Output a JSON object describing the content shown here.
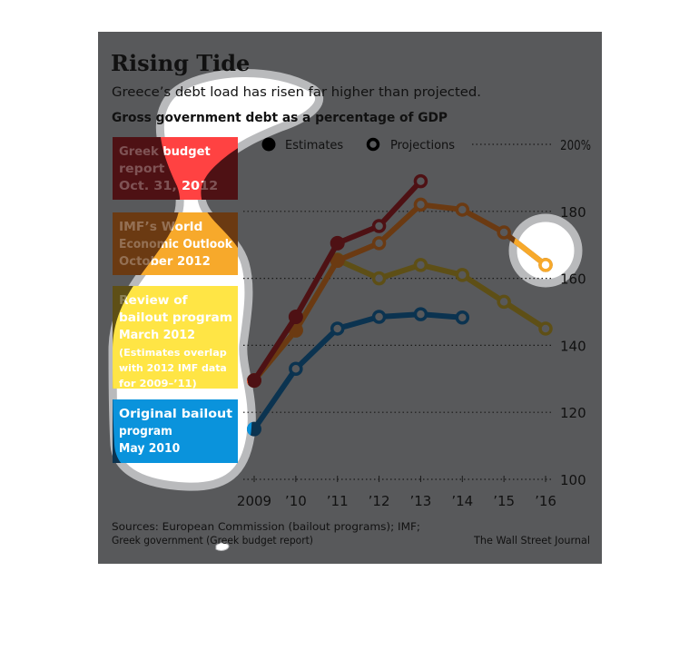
{
  "colors": {
    "background": "#58595b",
    "highlight_fill": "#ffffff",
    "highlight_ring": "#b9babc",
    "text": "#111111"
  },
  "chart_data": {
    "type": "line",
    "title": "Rising Tide",
    "subtitle": "Greece’s debt load has risen far higher than projected.",
    "chart_label": "Gross government debt as a percentage of GDP",
    "xlabel": "",
    "ylabel": "",
    "x": [
      2009,
      2010,
      2011,
      2012,
      2013,
      2014,
      2015,
      2016
    ],
    "x_tick_labels": [
      "2009",
      "’10",
      "’11",
      "’12",
      "’13",
      "’14",
      "’15",
      "’16"
    ],
    "ylim": [
      100,
      200
    ],
    "y_ticks": [
      100,
      120,
      140,
      160,
      180,
      200
    ],
    "y_tick_labels": [
      "100",
      "120",
      "140",
      "160",
      "180",
      "200%"
    ],
    "grid": true,
    "legend": {
      "placement": "top",
      "items": [
        {
          "label": "Estimates",
          "marker": "filled-circle"
        },
        {
          "label": "Projections",
          "marker": "open-circle"
        }
      ]
    },
    "series": [
      {
        "name": "Original bailout program May 2010",
        "label_lines": [
          "Original bailout",
          "program",
          "May 2010"
        ],
        "color_bright": "#0a93dc",
        "color_dim": "#0b3350",
        "x": [
          2009,
          2010,
          2011,
          2012,
          2013,
          2014
        ],
        "values": [
          115,
          133,
          145,
          148.5,
          149.3,
          148.3
        ],
        "estimate_count": 1
      },
      {
        "name": "Review of bailout program March 2012",
        "label_lines": [
          "Review of",
          "bailout program",
          "March 2012",
          "(Estimates overlap",
          "with 2012 IMF data",
          "for 2009–’11)"
        ],
        "color_bright": "#ffe545",
        "color_dim": "#5e4f16",
        "x": [
          2009,
          2010,
          2011,
          2012,
          2013,
          2014,
          2015,
          2016
        ],
        "values": [
          129.5,
          144.5,
          165.5,
          160,
          164,
          161,
          153,
          145
        ],
        "estimate_count": 3
      },
      {
        "name": "IMF’s World Economic Outlook October 2012",
        "label_lines": [
          "IMF’s World",
          "Economic Outlook",
          "October 2012"
        ],
        "color_bright": "#f7a92b",
        "color_dim": "#6b3a12",
        "x": [
          2009,
          2010,
          2011,
          2012,
          2013,
          2014,
          2015,
          2016
        ],
        "values": [
          129.5,
          144.5,
          165.3,
          170.5,
          182,
          180.5,
          173.7,
          164
        ],
        "estimate_count": 3
      },
      {
        "name": "Greek budget report Oct. 31, 2012",
        "label_lines": [
          "Greek budget",
          "report",
          "Oct. 31, 2012"
        ],
        "color_bright": "#ff4242",
        "color_dim": "#4e1114",
        "x": [
          2009,
          2010,
          2011,
          2012,
          2013
        ],
        "values": [
          129.5,
          148.5,
          170.5,
          175.6,
          189
        ],
        "estimate_count": 3
      }
    ],
    "sources": [
      "Sources: European Commission (bailout programs); IMF;",
      "Greek government (Greek budget report)"
    ],
    "credit": "The Wall Street Journal"
  }
}
